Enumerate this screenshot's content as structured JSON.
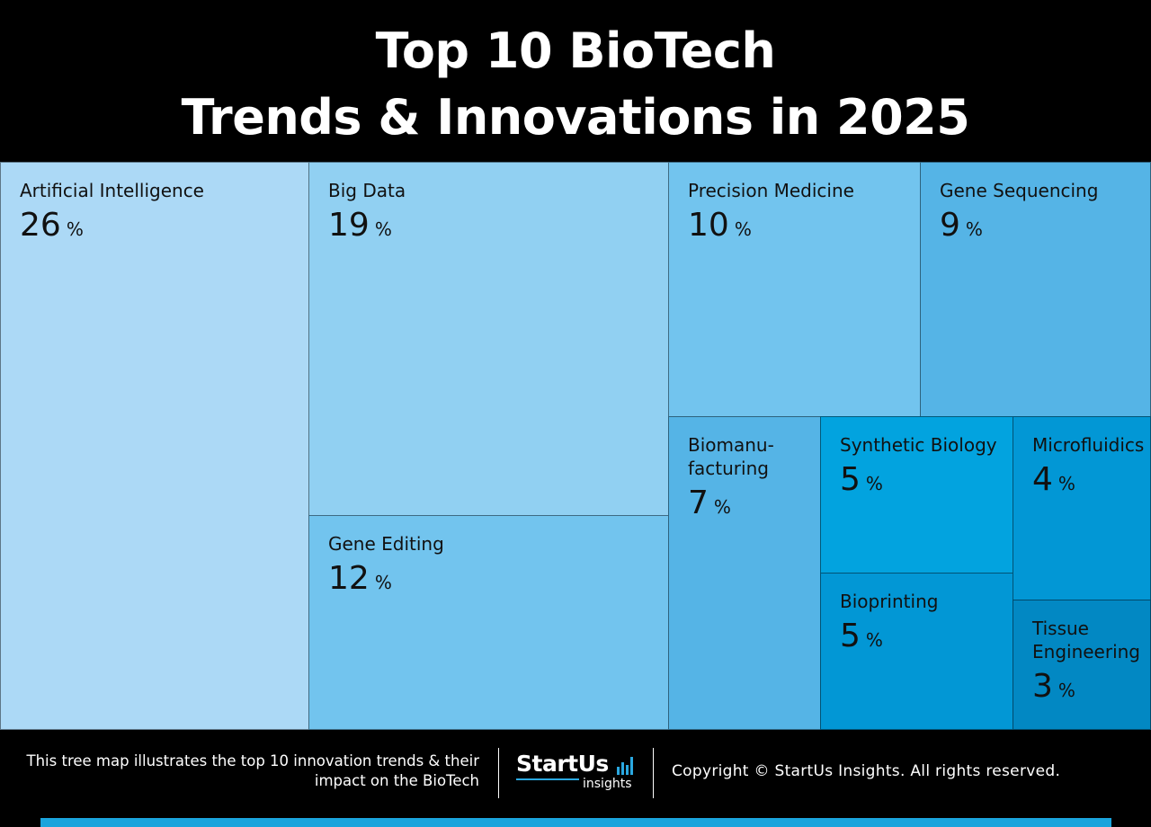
{
  "header": {
    "title_line1": "Top 10 BioTech",
    "title_line2": "Trends & Innovations in 2025"
  },
  "chart_data": {
    "type": "treemap",
    "unit": "%",
    "items": [
      {
        "label": "Artificial Intelligence",
        "value": 26,
        "color": "#acd9f6"
      },
      {
        "label": "Big Data",
        "value": 19,
        "color": "#91d0f2"
      },
      {
        "label": "Gene Editing",
        "value": 12,
        "color": "#72c4ee"
      },
      {
        "label": "Precision Medicine",
        "value": 10,
        "color": "#72c4ee"
      },
      {
        "label": "Gene Sequencing",
        "value": 9,
        "color": "#55b4e6"
      },
      {
        "label": "Biomanu-\nfacturing",
        "value": 7,
        "color": "#55b4e6"
      },
      {
        "label": "Synthetic Biology",
        "value": 5,
        "color": "#02a3df"
      },
      {
        "label": "Bioprinting",
        "value": 5,
        "color": "#0297d5"
      },
      {
        "label": "Microfluidics",
        "value": 4,
        "color": "#0297d5"
      },
      {
        "label": "Tissue\nEngineering",
        "value": 3,
        "color": "#0288c3"
      }
    ]
  },
  "footer": {
    "description": "This tree map illustrates the top 10 innovation trends & their impact on the BioTech",
    "logo_word": "StartUs",
    "logo_sub": "insights",
    "copyright": "Copyright © StartUs Insights. All rights reserved.",
    "accent_color": "#1aa4dc"
  }
}
